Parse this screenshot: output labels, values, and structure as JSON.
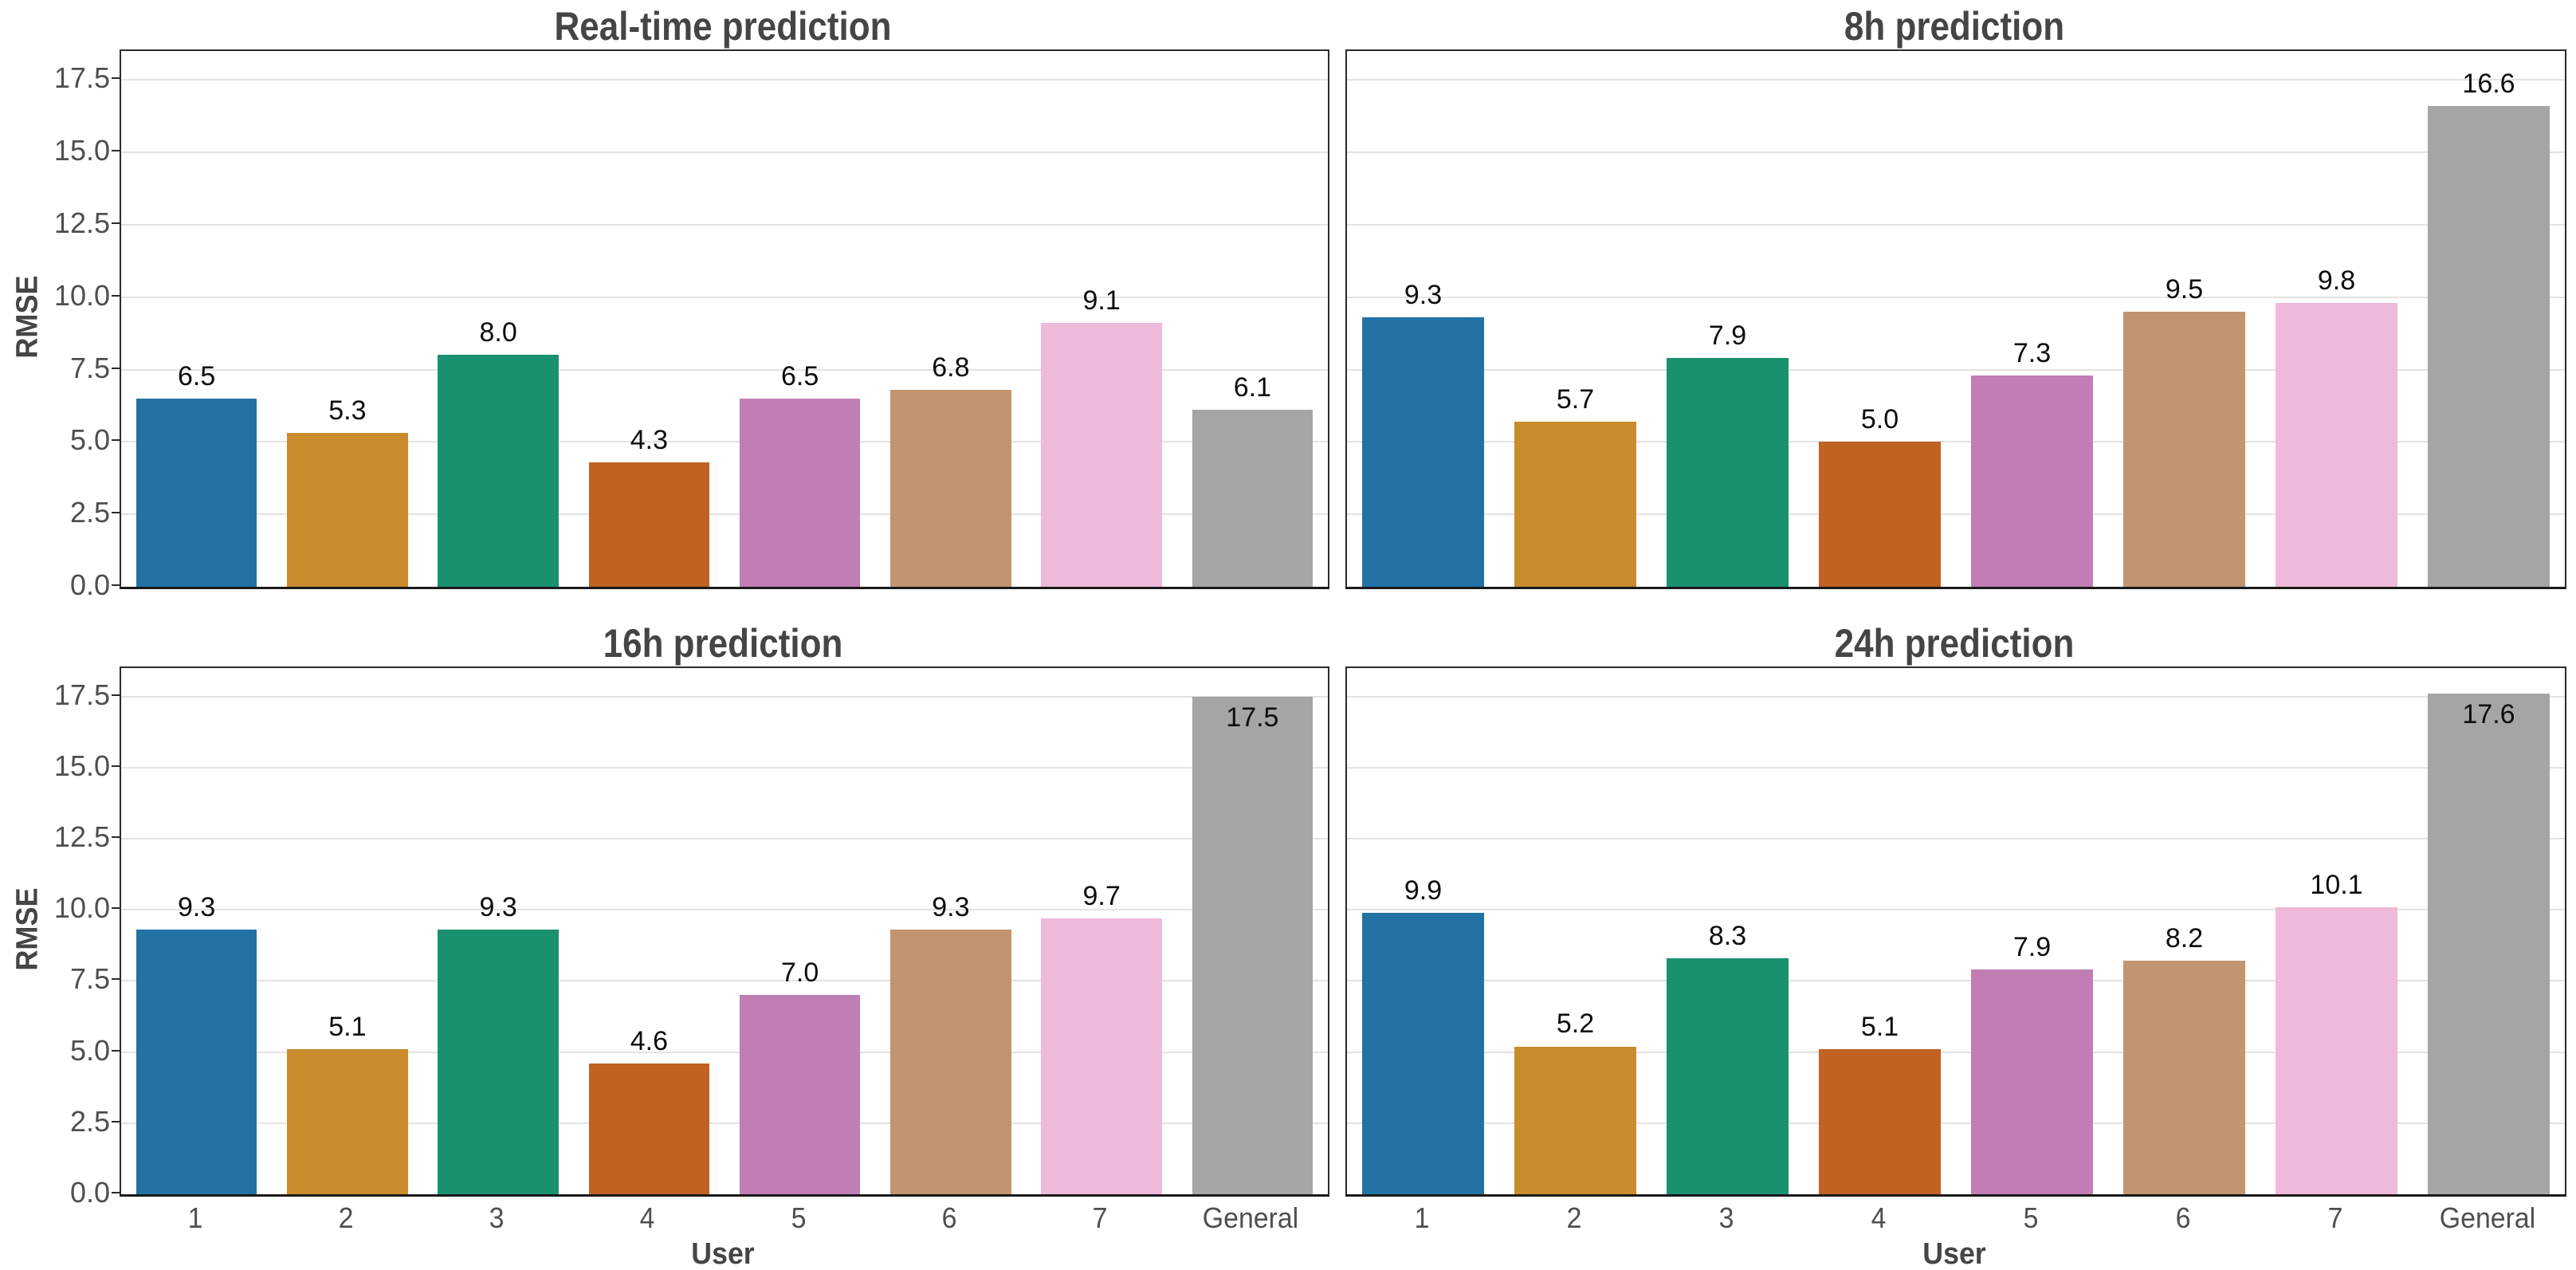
{
  "figure": {
    "ylabel": "RMSE",
    "xlabel": "User",
    "background": "#ffffff",
    "palette": [
      "#2272a4",
      "#c98b2c",
      "#19916f",
      "#c06222",
      "#c07eb4",
      "#c29470",
      "#efb9d9",
      "#a5a5a5"
    ],
    "grid_color": "#e3e3e3",
    "title_color": "#454545",
    "tick_color": "#4f4f4f",
    "value_label_color": "#0d0d0d"
  },
  "chart_data": [
    {
      "type": "bar",
      "title": "Real-time prediction",
      "categories": [
        "1",
        "2",
        "3",
        "4",
        "5",
        "6",
        "7",
        "General"
      ],
      "values": [
        6.5,
        5.3,
        8.0,
        4.3,
        6.5,
        6.8,
        9.1,
        6.1
      ],
      "xlabel": "User",
      "ylabel": "RMSE",
      "ylim": [
        0,
        18.5
      ],
      "yticks": [
        0.0,
        2.5,
        5.0,
        7.5,
        10.0,
        12.5,
        15.0,
        17.5
      ],
      "grid": true,
      "legend": "none"
    },
    {
      "type": "bar",
      "title": "8h prediction",
      "categories": [
        "1",
        "2",
        "3",
        "4",
        "5",
        "6",
        "7",
        "General"
      ],
      "values": [
        9.3,
        5.7,
        7.9,
        5.0,
        7.3,
        9.5,
        9.8,
        16.6
      ],
      "xlabel": "User",
      "ylabel": "RMSE",
      "ylim": [
        0,
        18.5
      ],
      "yticks": [
        0.0,
        2.5,
        5.0,
        7.5,
        10.0,
        12.5,
        15.0,
        17.5
      ],
      "grid": true,
      "legend": "none"
    },
    {
      "type": "bar",
      "title": "16h prediction",
      "categories": [
        "1",
        "2",
        "3",
        "4",
        "5",
        "6",
        "7",
        "General"
      ],
      "values": [
        9.3,
        5.1,
        9.3,
        4.6,
        7.0,
        9.3,
        9.7,
        17.5
      ],
      "xlabel": "User",
      "ylabel": "RMSE",
      "ylim": [
        0,
        18.5
      ],
      "yticks": [
        0.0,
        2.5,
        5.0,
        7.5,
        10.0,
        12.5,
        15.0,
        17.5
      ],
      "grid": true,
      "legend": "none"
    },
    {
      "type": "bar",
      "title": "24h prediction",
      "categories": [
        "1",
        "2",
        "3",
        "4",
        "5",
        "6",
        "7",
        "General"
      ],
      "values": [
        9.9,
        5.2,
        8.3,
        5.1,
        7.9,
        8.2,
        10.1,
        17.6
      ],
      "xlabel": "User",
      "ylabel": "RMSE",
      "ylim": [
        0,
        18.5
      ],
      "yticks": [
        0.0,
        2.5,
        5.0,
        7.5,
        10.0,
        12.5,
        15.0,
        17.5
      ],
      "grid": true,
      "legend": "none"
    }
  ]
}
